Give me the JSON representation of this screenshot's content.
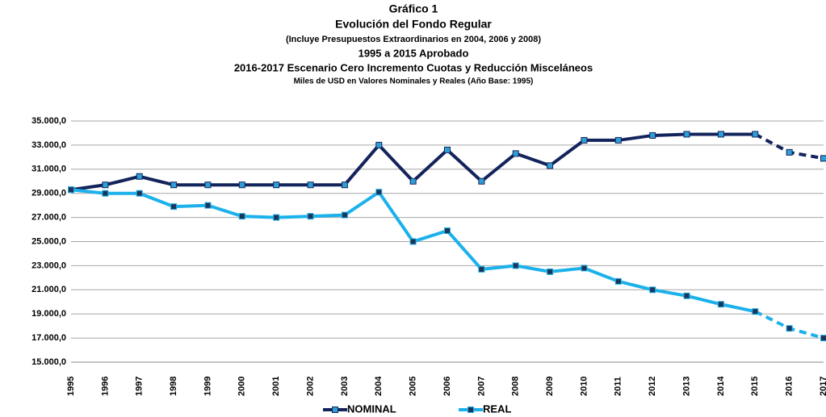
{
  "chart_data": {
    "type": "line",
    "title": "Gráfico 1",
    "subtitle_lines": [
      "Evolución del Fondo Regular",
      "(Incluye Presupuestos Extraordinarios en 2004, 2006 y 2008)",
      "1995 a 2015 Aprobado",
      "2016-2017 Escenario Cero Incremento Cuotas y Reducción Misceláneos",
      "Miles de USD en Valores Nominales y Reales (Año Base: 1995)"
    ],
    "categories": [
      "1995",
      "1996",
      "1997",
      "1998",
      "1999",
      "2000",
      "2001",
      "2002",
      "2003",
      "2004",
      "2005",
      "2006",
      "2007",
      "2008",
      "2009",
      "2010",
      "2011",
      "2012",
      "2013",
      "2014",
      "2015",
      "2016",
      "2017"
    ],
    "dashed_after": "2015",
    "series": [
      {
        "name": "NOMINAL",
        "color": "#13235b",
        "marker_color": "#2e9fd6",
        "values": [
          29300,
          29700,
          30400,
          29700,
          29700,
          29700,
          29700,
          29700,
          29700,
          33000,
          30000,
          32600,
          30000,
          32300,
          31300,
          33400,
          33400,
          33800,
          33900,
          33900,
          33900,
          32400,
          31900
        ]
      },
      {
        "name": "REAL",
        "color": "#1cb1ea",
        "marker_color": "#1d3557",
        "values": [
          29300,
          29000,
          29000,
          27900,
          28000,
          27100,
          27000,
          27100,
          27200,
          29100,
          25000,
          25900,
          22700,
          23000,
          22500,
          22800,
          21700,
          21000,
          20500,
          19800,
          19200,
          17800,
          17000
        ]
      }
    ],
    "ylim": [
      15000,
      35000
    ],
    "yticks": [
      {
        "value": 15000,
        "label": "15.000,0"
      },
      {
        "value": 17000,
        "label": "17.000,0"
      },
      {
        "value": 19000,
        "label": "19.000,0"
      },
      {
        "value": 21000,
        "label": "21.000,0"
      },
      {
        "value": 23000,
        "label": "23.000,0"
      },
      {
        "value": 25000,
        "label": "25.000,0"
      },
      {
        "value": 27000,
        "label": "27.000,0"
      },
      {
        "value": 29000,
        "label": "29.000,0"
      },
      {
        "value": 31000,
        "label": "31.000,0"
      },
      {
        "value": 33000,
        "label": "33.000,0"
      },
      {
        "value": 35000,
        "label": "35.000,0"
      }
    ],
    "grid": true
  }
}
